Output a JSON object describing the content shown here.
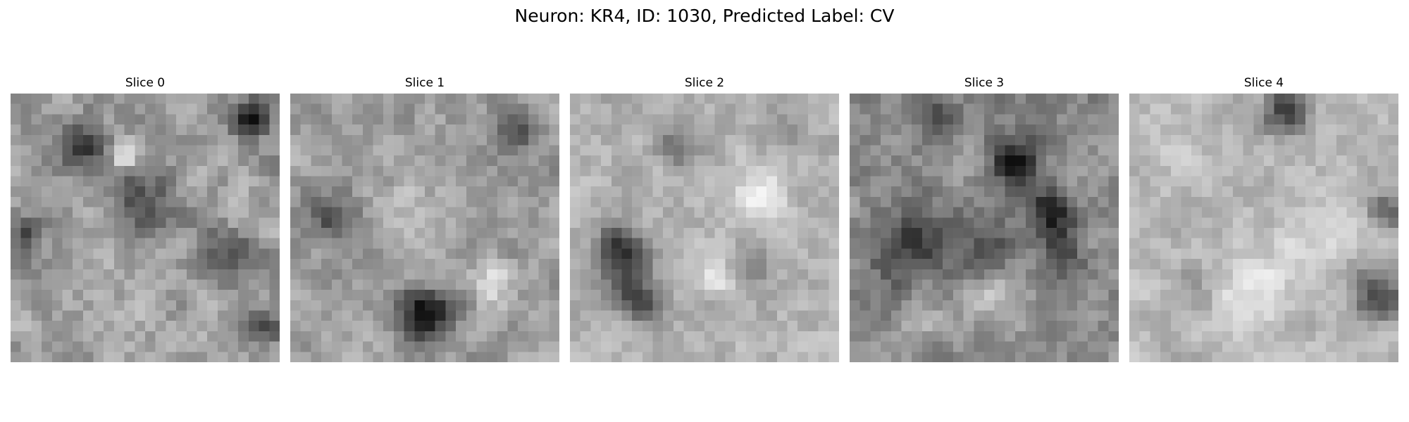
{
  "figure": {
    "title": "Neuron: KR4, ID: 1030, Predicted Label: CV",
    "colormap": "gray"
  },
  "panels": [
    {
      "title": "Slice 0"
    },
    {
      "title": "Slice 1"
    },
    {
      "title": "Slice 2"
    },
    {
      "title": "Slice 3"
    },
    {
      "title": "Slice 4"
    }
  ]
}
